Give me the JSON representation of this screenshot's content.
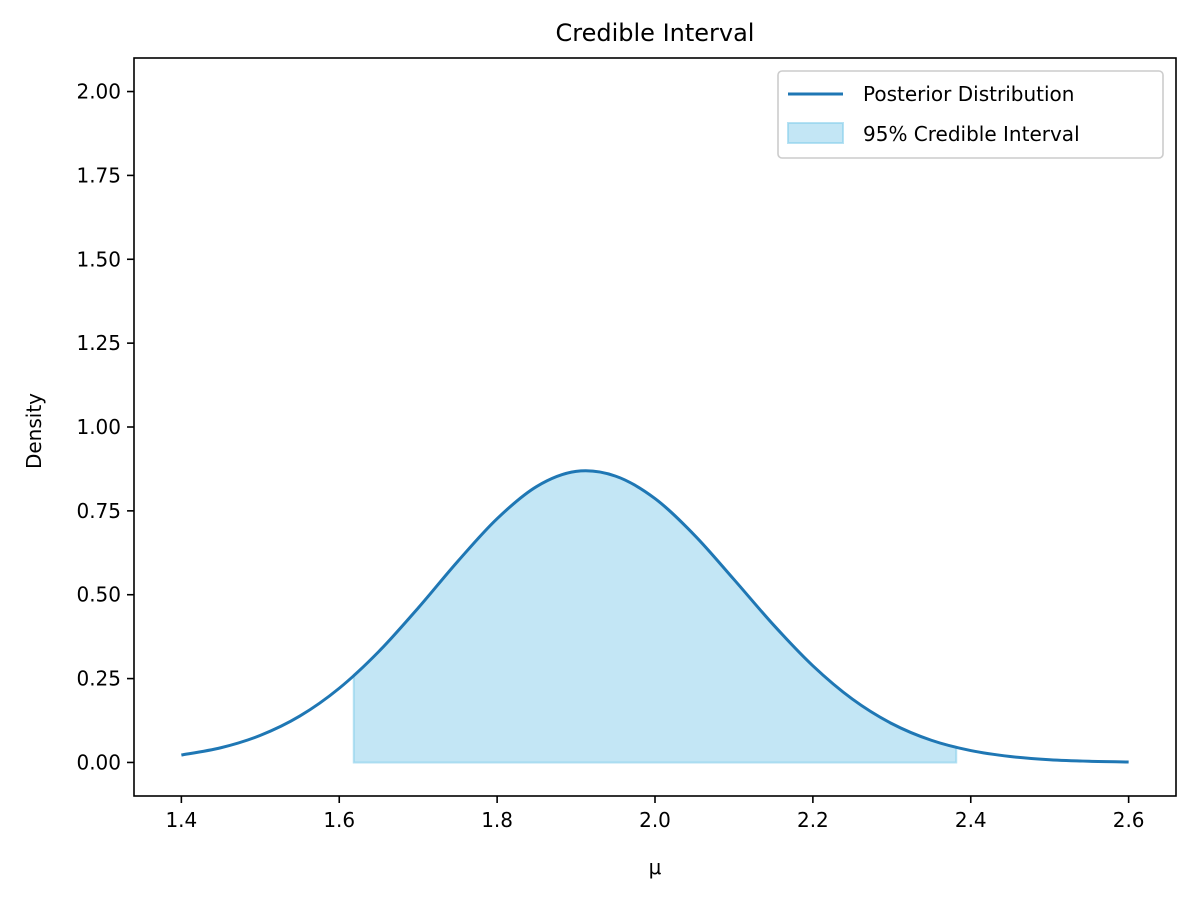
{
  "chart_data": {
    "type": "line",
    "title": "Credible Interval",
    "xlabel": "μ",
    "ylabel": "Density",
    "xlim": [
      1.34,
      2.66
    ],
    "ylim": [
      -0.1,
      2.1
    ],
    "xticks": [
      1.4,
      1.6,
      1.8,
      2.0,
      2.2,
      2.4,
      2.6
    ],
    "xtick_labels": [
      "1.4",
      "1.6",
      "1.8",
      "2.0",
      "2.2",
      "2.4",
      "2.6"
    ],
    "yticks": [
      0.0,
      0.25,
      0.5,
      0.75,
      1.0,
      1.25,
      1.5,
      1.75,
      2.0
    ],
    "ytick_labels": [
      "0.00",
      "0.25",
      "0.50",
      "0.75",
      "1.00",
      "1.25",
      "1.50",
      "1.75",
      "2.00"
    ],
    "grid": false,
    "legend_position": "top-right",
    "series": [
      {
        "name": "Posterior Distribution",
        "kind": "line",
        "color": "#1f77b4",
        "x": [
          1.4,
          1.45,
          1.5,
          1.55,
          1.6,
          1.65,
          1.7,
          1.75,
          1.8,
          1.85,
          1.9,
          1.95,
          2.0,
          2.05,
          2.1,
          2.15,
          2.2,
          2.25,
          2.3,
          2.35,
          2.4,
          2.45,
          2.5,
          2.55,
          2.6
        ],
        "y": [
          0.0222,
          0.0438,
          0.0807,
          0.1382,
          0.2212,
          0.3304,
          0.4605,
          0.5991,
          0.7267,
          0.8225,
          0.8676,
          0.8536,
          0.7867,
          0.6776,
          0.5456,
          0.4103,
          0.2882,
          0.189,
          0.1158,
          0.0662,
          0.0354,
          0.0177,
          0.0082,
          0.0036,
          0.0015
        ]
      },
      {
        "name": "95% Credible Interval",
        "kind": "area",
        "color": "#87ceeb",
        "x_range": [
          1.6184,
          2.3816
        ]
      }
    ]
  }
}
